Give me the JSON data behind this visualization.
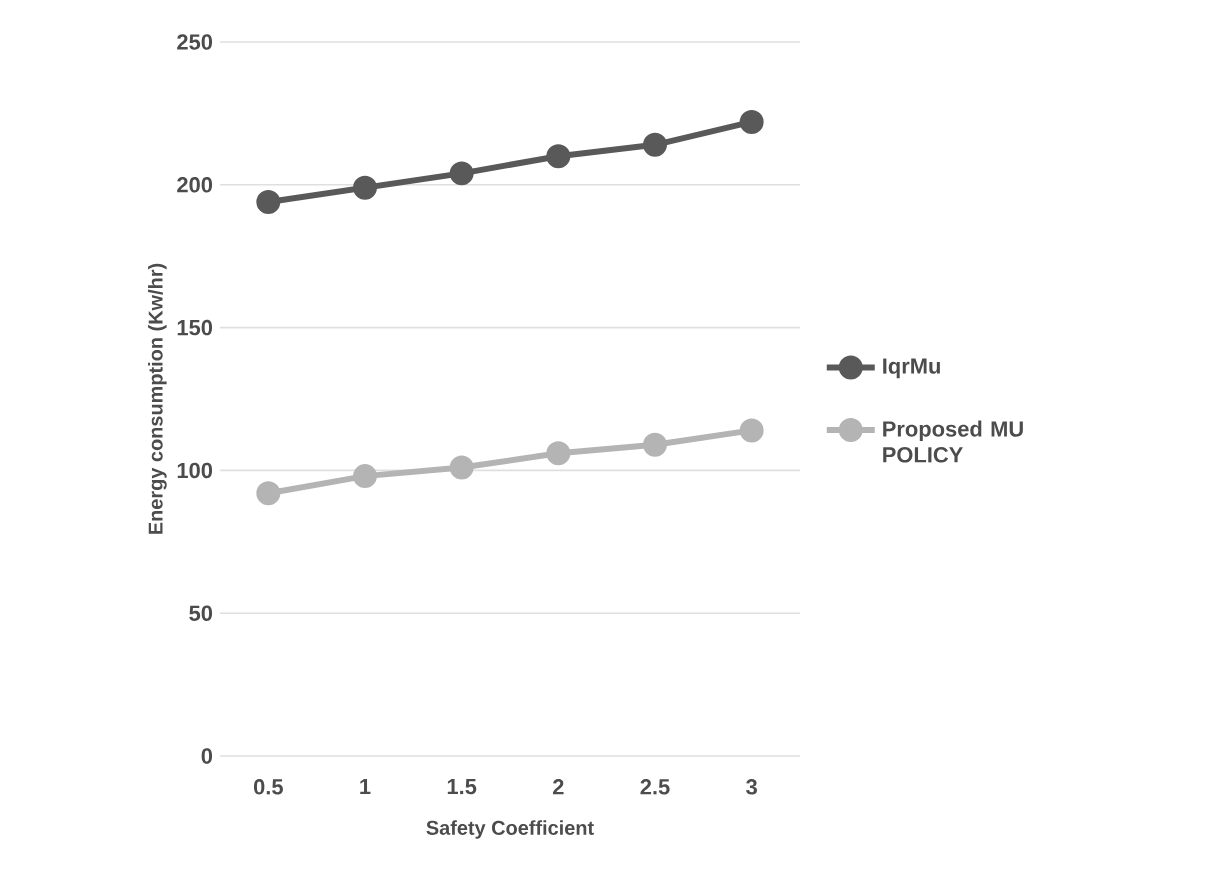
{
  "chart_data": {
    "type": "line",
    "xlabel": "Safety Coefficient",
    "ylabel": "Energy consumption (Kw/hr)",
    "categories": [
      "0.5",
      "1",
      "1.5",
      "2",
      "2.5",
      "3"
    ],
    "series": [
      {
        "name": "IqrMu",
        "color": "#595959",
        "values": [
          194,
          199,
          204,
          210,
          214,
          222
        ]
      },
      {
        "name": "Proposed MU POLICY",
        "color": "#b4b4b4",
        "values": [
          92,
          98,
          101,
          106,
          109,
          114
        ]
      }
    ],
    "ylim": [
      0,
      250
    ],
    "yticks": [
      0,
      50,
      100,
      150,
      200,
      250
    ],
    "grid": "y",
    "legend": "right",
    "marker": "circle",
    "line_style": "solid"
  }
}
